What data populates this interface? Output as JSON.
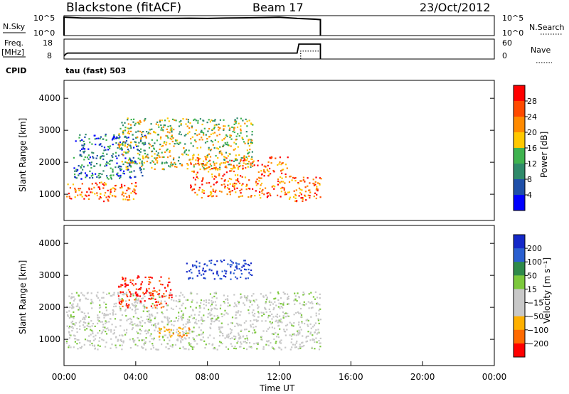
{
  "header": {
    "station": "Blackstone (fitACF)",
    "beam": "Beam 17",
    "date": "23/Oct/2012"
  },
  "left_labels": {
    "nsky": "N.Sky",
    "freq_line1": "Freq.",
    "freq_line2": "[MHz]",
    "cpid": "CPID"
  },
  "right_labels": {
    "nsearch": "N.Search",
    "nave": "Nave"
  },
  "cpid_value": "tau (fast) 503",
  "noise_ticks": {
    "left": [
      "10^5",
      "10^0"
    ],
    "right": [
      "10^5",
      "10^0"
    ]
  },
  "freq_ticks": {
    "left": [
      "18",
      "8"
    ],
    "right": [
      "60",
      "0"
    ]
  },
  "chart_data": [
    {
      "type": "line",
      "panel": "noise",
      "x_range_hours": [
        0,
        24
      ],
      "series": [
        {
          "name": "N.Sky",
          "x": [
            0,
            0.1,
            0.5,
            1,
            2,
            3,
            4,
            5,
            6,
            7,
            8,
            9,
            10,
            11,
            12,
            13,
            14,
            14.3
          ],
          "y_log10": [
            4.6,
            4.6,
            4.5,
            4.4,
            4.4,
            4.3,
            4.35,
            4.3,
            4.3,
            4.35,
            4.3,
            4.4,
            4.45,
            4.5,
            4.6,
            4.3,
            4.1,
            4.0
          ]
        },
        {
          "name": "N.Search",
          "x": [],
          "y_log10": []
        }
      ],
      "ylim_log10": [
        0,
        5
      ]
    },
    {
      "type": "line",
      "panel": "frequency",
      "x_range_hours": [
        0,
        24
      ],
      "series": [
        {
          "name": "Freq.",
          "x": [
            0,
            0.1,
            0.2,
            13,
            13.1,
            13.5,
            13.6,
            14.3
          ],
          "y": [
            9.5,
            10.5,
            11,
            11,
            15.5,
            15.5,
            15.5,
            15.5
          ]
        },
        {
          "name": "Nave",
          "x": [
            13.2,
            13.4,
            14.3
          ],
          "y": [
            12,
            12,
            12
          ]
        }
      ],
      "ylim_left": [
        8,
        18
      ],
      "ylim_right": [
        0,
        60
      ]
    },
    {
      "type": "heatmap",
      "panel": "power",
      "xlabel": "",
      "ylabel": "Slant Range [km]",
      "xlim_hours": [
        0,
        24
      ],
      "ylim_km": [
        180,
        4560
      ],
      "y_ticks": [
        "1000",
        "2000",
        "3000",
        "4000"
      ],
      "colorbar": {
        "label": "Power [dB]",
        "ticks": [
          "28",
          "24",
          "20",
          "16",
          "12",
          "8",
          "4"
        ],
        "colors": [
          "#ff0000",
          "#ff4a00",
          "#ff8a00",
          "#ffc800",
          "#3fb34f",
          "#2f8a6a",
          "#1f4fa8",
          "#0000ff"
        ]
      },
      "features": [
        {
          "t0": 0.1,
          "t1": 4.0,
          "r0": 800,
          "r1": 1400,
          "level": "high"
        },
        {
          "t0": 0.5,
          "t1": 4.5,
          "r0": 1500,
          "r1": 2900,
          "level": "low"
        },
        {
          "t0": 3.0,
          "t1": 10.5,
          "r0": 1800,
          "r1": 3400,
          "level": "mid"
        },
        {
          "t0": 7.0,
          "t1": 12.5,
          "r0": 900,
          "r1": 2200,
          "level": "high"
        },
        {
          "t0": 12.5,
          "t1": 14.3,
          "r0": 800,
          "r1": 1600,
          "level": "high"
        }
      ]
    },
    {
      "type": "heatmap",
      "panel": "velocity",
      "xlabel": "Time UT",
      "ylabel": "Slant Range [km]",
      "xlim_hours": [
        0,
        24
      ],
      "x_ticks": [
        "00:00",
        "04:00",
        "08:00",
        "12:00",
        "16:00",
        "20:00",
        "00:00"
      ],
      "ylim_km": [
        180,
        4560
      ],
      "y_ticks": [
        "1000",
        "2000",
        "3000",
        "4000"
      ],
      "colorbar": {
        "label": "Velocity [m s⁻¹]",
        "ticks": [
          "200",
          "100",
          "50",
          "15",
          "−15",
          "−50",
          "−100",
          "−200"
        ],
        "colors": [
          "#1428c8",
          "#2a5fd0",
          "#2f8a4a",
          "#7cc83c",
          "#c8c8c8",
          "#c8c8c8",
          "#ffb000",
          "#ff6a00",
          "#ff0000"
        ]
      },
      "features": [
        {
          "t0": 6.8,
          "t1": 10.5,
          "r0": 2900,
          "r1": 3500,
          "level": "toward"
        },
        {
          "t0": 0.1,
          "t1": 14.3,
          "r0": 700,
          "r1": 2500,
          "level": "ground"
        },
        {
          "t0": 3.0,
          "t1": 6.0,
          "r0": 2000,
          "r1": 3000,
          "level": "away"
        },
        {
          "t0": 5.0,
          "t1": 7.0,
          "r0": 1100,
          "r1": 1400,
          "level": "away-mid"
        }
      ]
    }
  ]
}
